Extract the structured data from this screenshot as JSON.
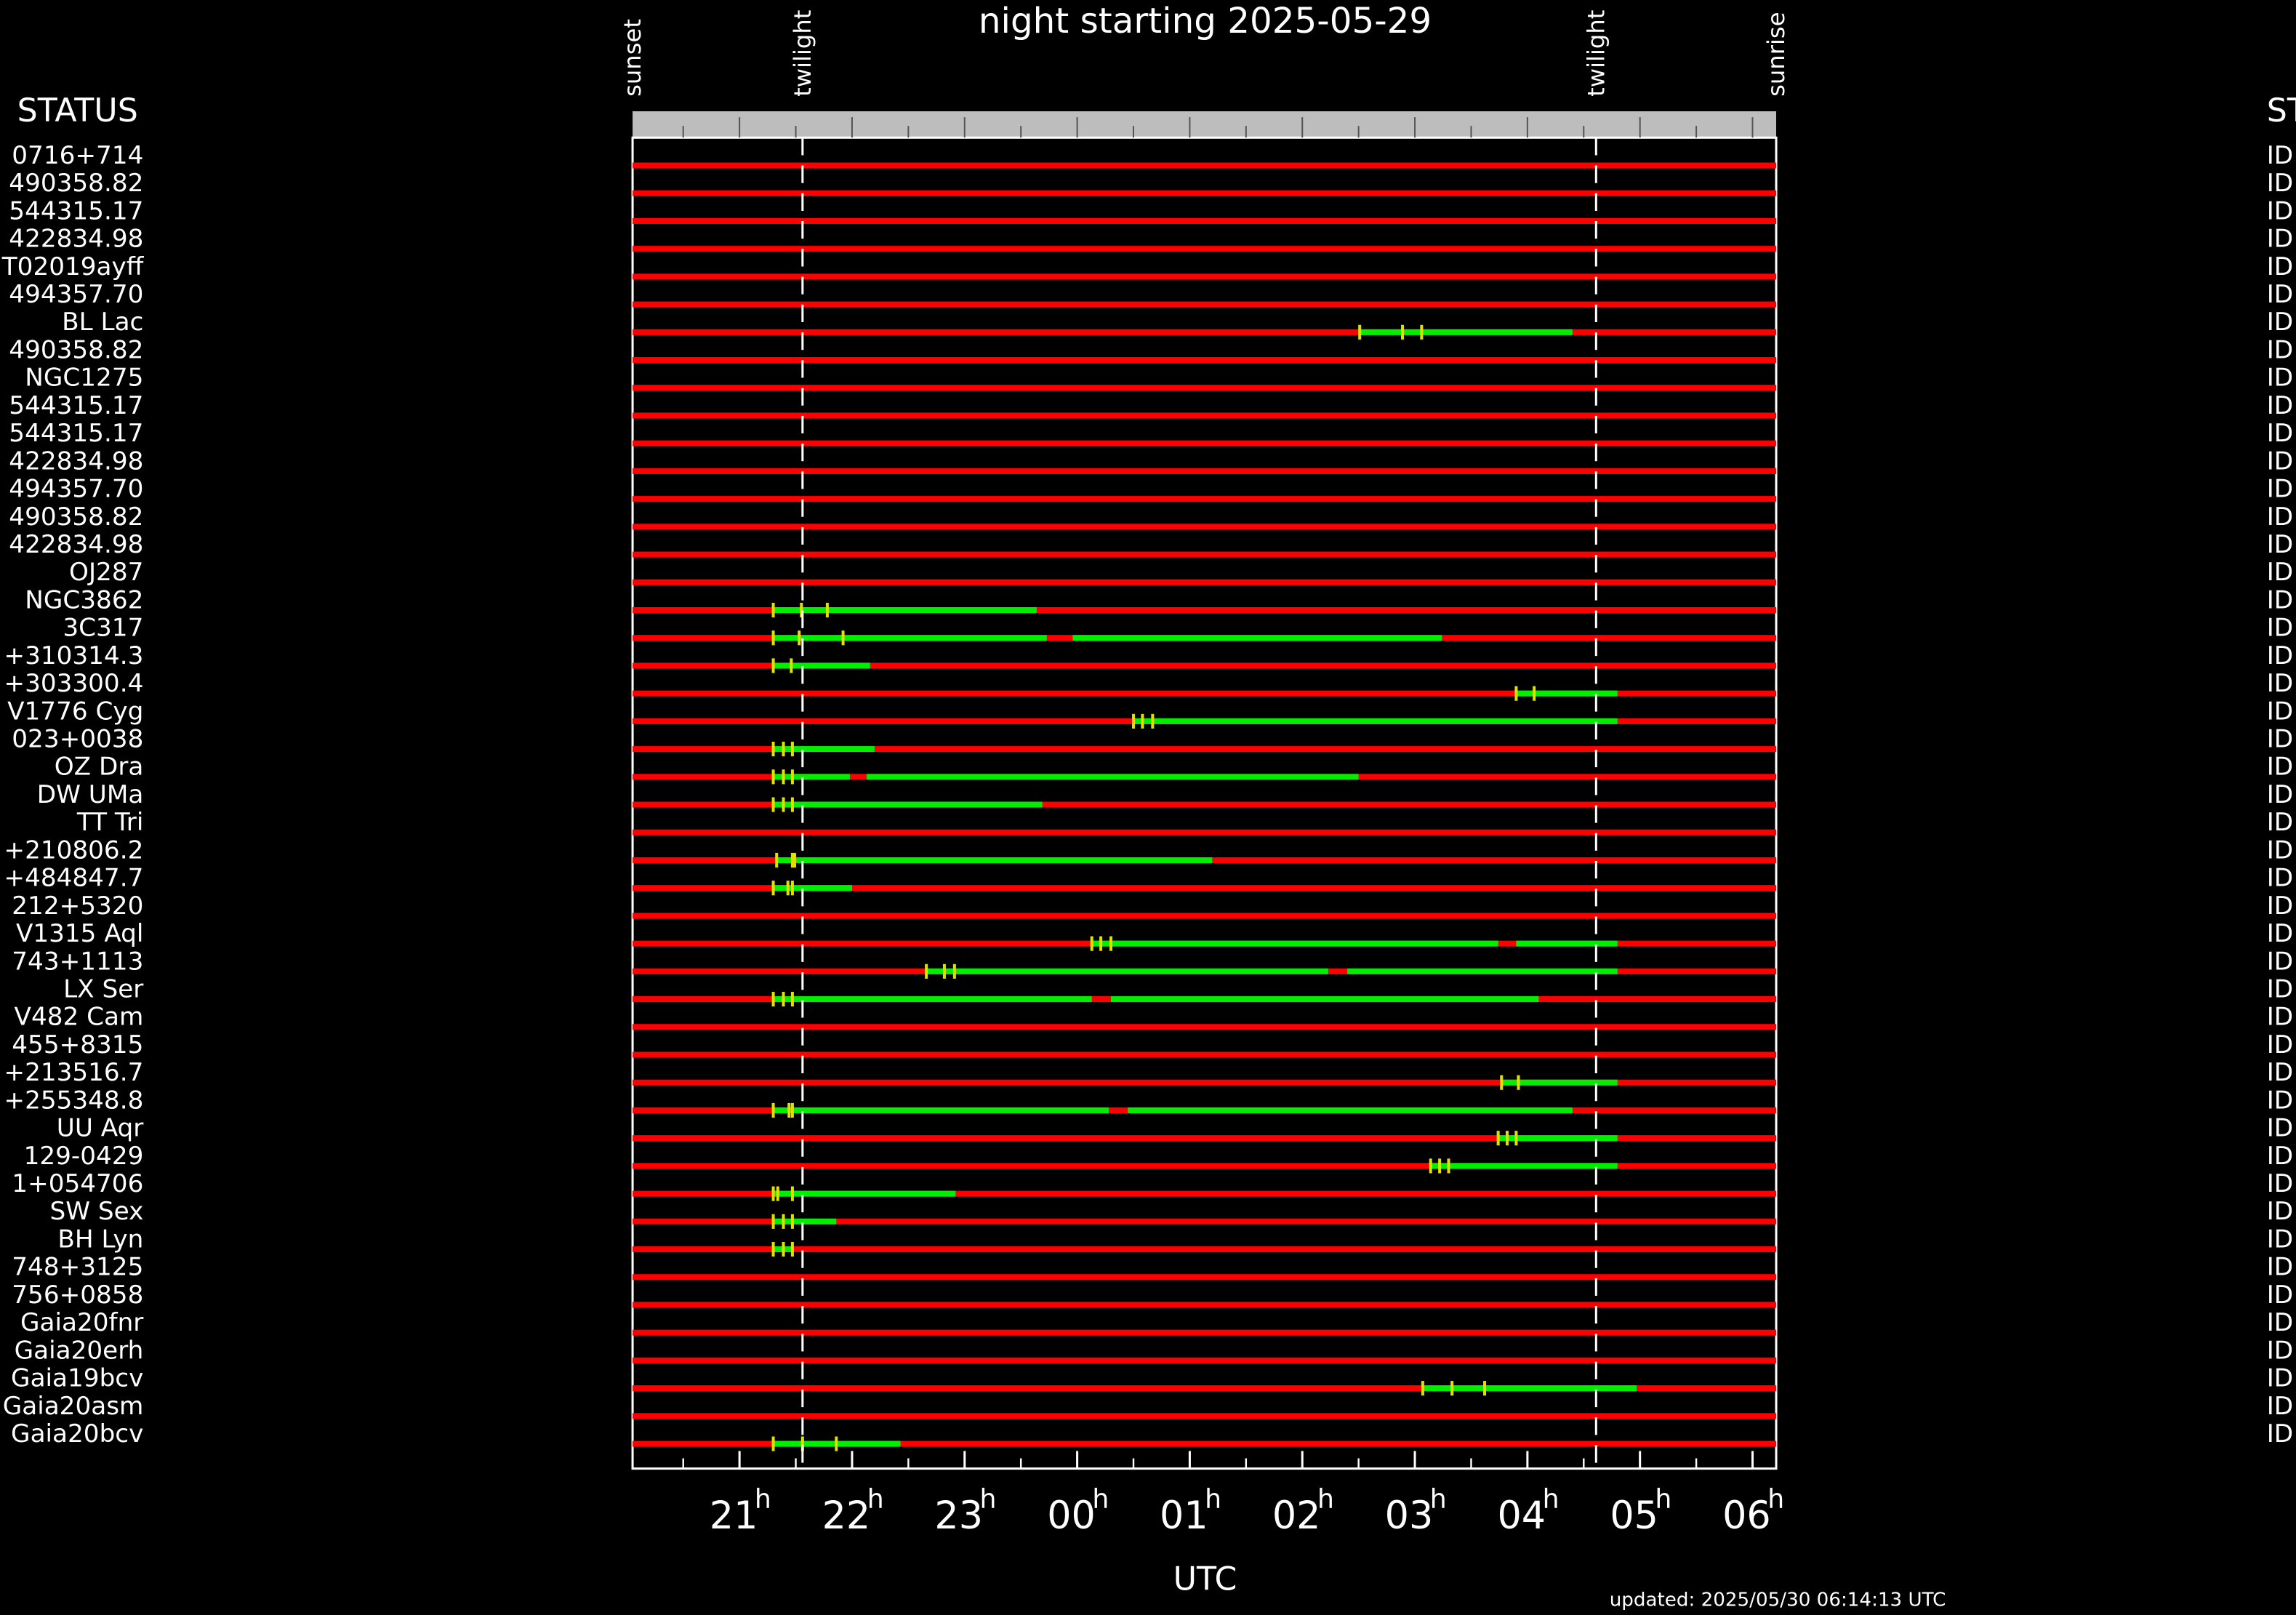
{
  "chart_data": {
    "type": "timeline",
    "title": "night starting 2025-05-29",
    "left_header": "STATUS",
    "right_header": "STATUS",
    "x_label": "UTC",
    "footer": "updated: 2025/05/30 06:14:13 UTC",
    "xlim": [
      20.05,
      30.21
    ],
    "xticks": [
      {
        "value": 21,
        "label": "21"
      },
      {
        "value": 22,
        "label": "22"
      },
      {
        "value": 23,
        "label": "23"
      },
      {
        "value": 24,
        "label": "00"
      },
      {
        "value": 25,
        "label": "01"
      },
      {
        "value": 26,
        "label": "02"
      },
      {
        "value": 27,
        "label": "03"
      },
      {
        "value": 28,
        "label": "04"
      },
      {
        "value": 29,
        "label": "05"
      },
      {
        "value": 30,
        "label": "06"
      }
    ],
    "x_tick_suffix": "h",
    "xminorticks": [
      20.5,
      21.5,
      22.5,
      23.5,
      24.5,
      25.5,
      26.5,
      27.5,
      28.5,
      29.5
    ],
    "events": [
      {
        "name": "sunset",
        "value": 20.05
      },
      {
        "name": "twilight",
        "value": 21.56,
        "dashed": true
      },
      {
        "name": "twilight",
        "value": 28.61,
        "dashed": true
      },
      {
        "name": "sunrise",
        "value": 30.21
      }
    ],
    "colors": {
      "unobservable": "#ff0000",
      "observable": "#00ee00",
      "marker": "#e0e000"
    },
    "rows": [
      {
        "name": "0716+714",
        "status": "ID",
        "segments": [],
        "markers": []
      },
      {
        "name": "490358.82",
        "status": "ID",
        "segments": [],
        "markers": []
      },
      {
        "name": "544315.17",
        "status": "ID",
        "segments": [],
        "markers": []
      },
      {
        "name": "422834.98",
        "status": "ID",
        "segments": [],
        "markers": []
      },
      {
        "name": "T02019ayff",
        "status": "ID",
        "segments": [],
        "markers": []
      },
      {
        "name": "494357.70",
        "status": "ID",
        "segments": [],
        "markers": []
      },
      {
        "name": "BL Lac",
        "status": "ID",
        "segments": [
          [
            26.51,
            28.4
          ]
        ],
        "markers": [
          26.51,
          26.89,
          27.06
        ]
      },
      {
        "name": "490358.82",
        "status": "ID",
        "segments": [],
        "markers": []
      },
      {
        "name": "NGC1275",
        "status": "ID",
        "segments": [],
        "markers": []
      },
      {
        "name": "544315.17",
        "status": "ID",
        "segments": [],
        "markers": []
      },
      {
        "name": "544315.17",
        "status": "ID",
        "segments": [],
        "markers": []
      },
      {
        "name": "422834.98",
        "status": "ID",
        "segments": [],
        "markers": []
      },
      {
        "name": "494357.70",
        "status": "ID",
        "segments": [],
        "markers": []
      },
      {
        "name": "490358.82",
        "status": "ID",
        "segments": [],
        "markers": []
      },
      {
        "name": "422834.98",
        "status": "ID",
        "segments": [],
        "markers": []
      },
      {
        "name": "OJ287",
        "status": "ID",
        "segments": [],
        "markers": []
      },
      {
        "name": "NGC3862",
        "status": "ID",
        "segments": [
          [
            21.3,
            23.64
          ]
        ],
        "markers": [
          21.3,
          21.55,
          21.78
        ]
      },
      {
        "name": "3C317",
        "status": "ID",
        "segments": [
          [
            21.3,
            23.73
          ],
          [
            23.96,
            27.24
          ]
        ],
        "markers": [
          21.3,
          21.53,
          21.92
        ]
      },
      {
        "name": "+310314.3",
        "status": "ID",
        "segments": [
          [
            21.3,
            22.16
          ]
        ],
        "markers": [
          21.3,
          21.46
        ]
      },
      {
        "name": "+303300.4",
        "status": "ID",
        "segments": [
          [
            27.9,
            28.8
          ]
        ],
        "markers": [
          27.9,
          28.06
        ]
      },
      {
        "name": "V1776 Cyg",
        "status": "ID",
        "segments": [
          [
            24.5,
            28.8
          ]
        ],
        "markers": [
          24.5,
          24.58,
          24.67
        ]
      },
      {
        "name": "023+0038",
        "status": "ID",
        "segments": [
          [
            21.3,
            22.2
          ]
        ],
        "markers": [
          21.3,
          21.39,
          21.47
        ]
      },
      {
        "name": "OZ Dra",
        "status": "ID",
        "segments": [
          [
            21.3,
            21.98
          ],
          [
            22.13,
            26.5
          ]
        ],
        "markers": [
          21.3,
          21.39,
          21.47
        ]
      },
      {
        "name": "DW UMa",
        "status": "ID",
        "segments": [
          [
            21.3,
            23.69
          ]
        ],
        "markers": [
          21.3,
          21.39,
          21.47
        ]
      },
      {
        "name": "TT Tri",
        "status": "ID",
        "segments": [],
        "markers": []
      },
      {
        "name": "+210806.2",
        "status": "ID",
        "segments": [
          [
            21.33,
            25.2
          ]
        ],
        "markers": [
          21.33,
          21.47,
          21.49
        ]
      },
      {
        "name": "+484847.7",
        "status": "ID",
        "segments": [
          [
            21.3,
            22.0
          ]
        ],
        "markers": [
          21.3,
          21.43,
          21.47
        ]
      },
      {
        "name": "212+5320",
        "status": "ID",
        "segments": [],
        "markers": []
      },
      {
        "name": "V1315 Aql",
        "status": "ID",
        "segments": [
          [
            24.13,
            27.74
          ],
          [
            27.9,
            28.8
          ]
        ],
        "markers": [
          24.13,
          24.21,
          24.3
        ]
      },
      {
        "name": "743+1113",
        "status": "ID",
        "segments": [
          [
            22.66,
            26.23
          ],
          [
            26.4,
            28.8
          ]
        ],
        "markers": [
          22.66,
          22.82,
          22.91
        ]
      },
      {
        "name": "LX Ser",
        "status": "ID",
        "segments": [
          [
            21.3,
            24.13
          ],
          [
            24.3,
            28.1
          ]
        ],
        "markers": [
          21.3,
          21.39,
          21.47
        ]
      },
      {
        "name": "V482 Cam",
        "status": "ID",
        "segments": [],
        "markers": []
      },
      {
        "name": "455+8315",
        "status": "ID",
        "segments": [],
        "markers": []
      },
      {
        "name": "+213516.7",
        "status": "ID",
        "segments": [
          [
            27.77,
            28.8
          ]
        ],
        "markers": [
          27.77,
          27.92
        ]
      },
      {
        "name": "+255348.8",
        "status": "ID",
        "segments": [
          [
            21.3,
            24.28
          ],
          [
            24.45,
            28.4
          ]
        ],
        "markers": [
          21.3,
          21.44,
          21.47
        ]
      },
      {
        "name": "UU Aqr",
        "status": "ID",
        "segments": [
          [
            27.74,
            28.8
          ]
        ],
        "markers": [
          27.74,
          27.82,
          27.9
        ]
      },
      {
        "name": "129-0429",
        "status": "ID",
        "segments": [
          [
            27.14,
            28.8
          ]
        ],
        "markers": [
          27.14,
          27.22,
          27.3
        ]
      },
      {
        "name": "1+054706",
        "status": "ID",
        "segments": [
          [
            21.3,
            22.92
          ]
        ],
        "markers": [
          21.3,
          21.34,
          21.47
        ]
      },
      {
        "name": "SW Sex",
        "status": "ID",
        "segments": [
          [
            21.3,
            21.86
          ]
        ],
        "markers": [
          21.3,
          21.39,
          21.47
        ]
      },
      {
        "name": "BH Lyn",
        "status": "ID",
        "segments": [
          [
            21.3,
            21.47
          ]
        ],
        "markers": [
          21.3,
          21.39,
          21.47
        ]
      },
      {
        "name": "748+3125",
        "status": "ID",
        "segments": [],
        "markers": []
      },
      {
        "name": "756+0858",
        "status": "ID",
        "segments": [],
        "markers": []
      },
      {
        "name": "Gaia20fnr",
        "status": "ID",
        "segments": [],
        "markers": []
      },
      {
        "name": "Gaia20erh",
        "status": "ID",
        "segments": [],
        "markers": []
      },
      {
        "name": "Gaia19bcv",
        "status": "ID",
        "segments": [
          [
            27.07,
            28.97
          ]
        ],
        "markers": [
          27.07,
          27.33,
          27.62
        ]
      },
      {
        "name": "Gaia20asm",
        "status": "ID",
        "segments": [],
        "markers": []
      },
      {
        "name": "Gaia20bcv",
        "status": "ID",
        "segments": [
          [
            21.3,
            22.43
          ]
        ],
        "markers": [
          21.3,
          21.56,
          21.86
        ]
      }
    ]
  }
}
